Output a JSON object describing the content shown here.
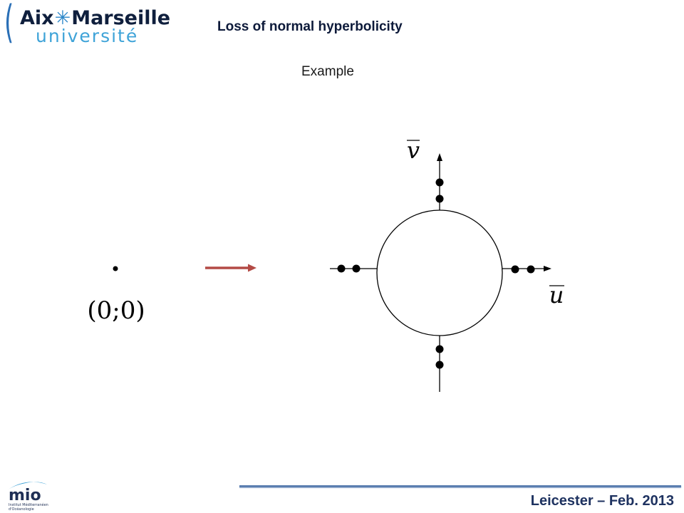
{
  "header": {
    "logo": {
      "line1_left": "Aix",
      "star": "✳",
      "line1_right": "Marseille",
      "line2": "université"
    },
    "title": "Loss of normal hyperbolicity"
  },
  "subtitle": "Example",
  "diagram": {
    "origin_label": "(0;0)",
    "axis_v_label": "v",
    "axis_u_label": "u",
    "arrow_color": "#b34a45",
    "line_color": "#000000"
  },
  "footer": {
    "mio_logo": {
      "text": "mio",
      "caption_line1": "Institut Méditerranéen",
      "caption_line2": "d'Océanologie"
    },
    "text": "Leicester – Feb. 2013",
    "rule_color": "#5b7eb0"
  }
}
